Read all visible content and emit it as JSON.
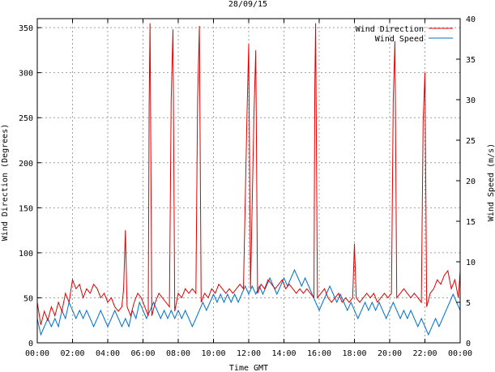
{
  "chart_data": {
    "type": "line",
    "title": "28/09/15",
    "xlabel": "Time GMT",
    "ylabel_left": "Wind Direction (Degrees)",
    "ylabel_right": "Wind Speed (m/s)",
    "x_ticks": [
      "00:00",
      "02:00",
      "04:00",
      "06:00",
      "08:00",
      "10:00",
      "12:00",
      "14:00",
      "16:00",
      "18:00",
      "20:00",
      "22:00",
      "00:00"
    ],
    "x_range_hours": [
      0,
      24
    ],
    "y_left_ticks": [
      0,
      50,
      100,
      150,
      200,
      250,
      300,
      350
    ],
    "y_left_range": [
      0,
      360
    ],
    "y_right_ticks": [
      0,
      5,
      10,
      15,
      20,
      25,
      30,
      35,
      40
    ],
    "y_right_range": [
      0,
      40
    ],
    "grid": true,
    "legend_position": "top-right",
    "series": [
      {
        "name": "Wind Direction",
        "axis": "left",
        "color": "#e00000",
        "points": [
          [
            0.0,
            45
          ],
          [
            0.2,
            20
          ],
          [
            0.4,
            35
          ],
          [
            0.6,
            25
          ],
          [
            0.8,
            40
          ],
          [
            1.0,
            30
          ],
          [
            1.2,
            45
          ],
          [
            1.4,
            35
          ],
          [
            1.6,
            55
          ],
          [
            1.8,
            45
          ],
          [
            2.0,
            70
          ],
          [
            2.2,
            60
          ],
          [
            2.4,
            65
          ],
          [
            2.6,
            50
          ],
          [
            2.8,
            60
          ],
          [
            3.0,
            55
          ],
          [
            3.2,
            65
          ],
          [
            3.4,
            60
          ],
          [
            3.6,
            50
          ],
          [
            3.8,
            55
          ],
          [
            4.0,
            45
          ],
          [
            4.2,
            50
          ],
          [
            4.4,
            40
          ],
          [
            4.6,
            35
          ],
          [
            4.8,
            40
          ],
          [
            4.9,
            60
          ],
          [
            5.0,
            125
          ],
          [
            5.1,
            40
          ],
          [
            5.3,
            30
          ],
          [
            5.5,
            45
          ],
          [
            5.7,
            55
          ],
          [
            5.9,
            50
          ],
          [
            6.1,
            40
          ],
          [
            6.3,
            30
          ],
          [
            6.35,
            265
          ],
          [
            6.4,
            355
          ],
          [
            6.5,
            30
          ],
          [
            6.7,
            45
          ],
          [
            6.9,
            55
          ],
          [
            7.1,
            50
          ],
          [
            7.3,
            45
          ],
          [
            7.5,
            40
          ],
          [
            7.6,
            270
          ],
          [
            7.7,
            348
          ],
          [
            7.8,
            35
          ],
          [
            8.0,
            55
          ],
          [
            8.2,
            50
          ],
          [
            8.4,
            60
          ],
          [
            8.6,
            55
          ],
          [
            8.8,
            60
          ],
          [
            9.0,
            55
          ],
          [
            9.1,
            270
          ],
          [
            9.2,
            352
          ],
          [
            9.3,
            45
          ],
          [
            9.5,
            55
          ],
          [
            9.7,
            50
          ],
          [
            9.9,
            60
          ],
          [
            10.1,
            55
          ],
          [
            10.3,
            65
          ],
          [
            10.5,
            60
          ],
          [
            10.7,
            55
          ],
          [
            10.9,
            60
          ],
          [
            11.1,
            55
          ],
          [
            11.3,
            60
          ],
          [
            11.5,
            65
          ],
          [
            11.7,
            60
          ],
          [
            11.9,
            250
          ],
          [
            12.0,
            332
          ],
          [
            12.1,
            60
          ],
          [
            12.3,
            255
          ],
          [
            12.4,
            325
          ],
          [
            12.5,
            55
          ],
          [
            12.7,
            65
          ],
          [
            12.9,
            60
          ],
          [
            13.1,
            70
          ],
          [
            13.3,
            65
          ],
          [
            13.5,
            60
          ],
          [
            13.7,
            65
          ],
          [
            13.9,
            70
          ],
          [
            14.1,
            60
          ],
          [
            14.3,
            65
          ],
          [
            14.5,
            60
          ],
          [
            14.7,
            55
          ],
          [
            14.9,
            60
          ],
          [
            15.1,
            55
          ],
          [
            15.3,
            60
          ],
          [
            15.5,
            55
          ],
          [
            15.7,
            50
          ],
          [
            15.75,
            285
          ],
          [
            15.8,
            355
          ],
          [
            15.9,
            50
          ],
          [
            16.1,
            55
          ],
          [
            16.3,
            60
          ],
          [
            16.5,
            50
          ],
          [
            16.7,
            45
          ],
          [
            16.9,
            50
          ],
          [
            17.1,
            55
          ],
          [
            17.3,
            45
          ],
          [
            17.5,
            50
          ],
          [
            17.7,
            45
          ],
          [
            17.9,
            50
          ],
          [
            18.0,
            110
          ],
          [
            18.1,
            50
          ],
          [
            18.3,
            45
          ],
          [
            18.5,
            50
          ],
          [
            18.7,
            55
          ],
          [
            18.9,
            50
          ],
          [
            19.1,
            55
          ],
          [
            19.3,
            45
          ],
          [
            19.5,
            50
          ],
          [
            19.7,
            55
          ],
          [
            19.9,
            50
          ],
          [
            20.1,
            55
          ],
          [
            20.2,
            270
          ],
          [
            20.3,
            335
          ],
          [
            20.4,
            50
          ],
          [
            20.6,
            55
          ],
          [
            20.8,
            60
          ],
          [
            21.0,
            55
          ],
          [
            21.2,
            50
          ],
          [
            21.4,
            55
          ],
          [
            21.6,
            50
          ],
          [
            21.8,
            45
          ],
          [
            21.9,
            245
          ],
          [
            22.0,
            300
          ],
          [
            22.1,
            40
          ],
          [
            22.3,
            55
          ],
          [
            22.5,
            60
          ],
          [
            22.7,
            70
          ],
          [
            22.9,
            65
          ],
          [
            23.1,
            75
          ],
          [
            23.3,
            80
          ],
          [
            23.5,
            60
          ],
          [
            23.7,
            70
          ],
          [
            23.9,
            50
          ],
          [
            24.0,
            80
          ]
        ]
      },
      {
        "name": "Wind Speed",
        "axis": "right",
        "color": "#0070d0",
        "points": [
          [
            0.0,
            3
          ],
          [
            0.2,
            1
          ],
          [
            0.4,
            2
          ],
          [
            0.6,
            3
          ],
          [
            0.8,
            2
          ],
          [
            1.0,
            3
          ],
          [
            1.2,
            2
          ],
          [
            1.4,
            4
          ],
          [
            1.6,
            3
          ],
          [
            1.8,
            5
          ],
          [
            2.0,
            4
          ],
          [
            2.2,
            3
          ],
          [
            2.4,
            4
          ],
          [
            2.6,
            3
          ],
          [
            2.8,
            4
          ],
          [
            3.0,
            3
          ],
          [
            3.2,
            2
          ],
          [
            3.4,
            3
          ],
          [
            3.6,
            4
          ],
          [
            3.8,
            3
          ],
          [
            4.0,
            2
          ],
          [
            4.2,
            3
          ],
          [
            4.4,
            4
          ],
          [
            4.6,
            3
          ],
          [
            4.8,
            2
          ],
          [
            5.0,
            3
          ],
          [
            5.2,
            2
          ],
          [
            5.4,
            4
          ],
          [
            5.6,
            3
          ],
          [
            5.8,
            5
          ],
          [
            6.0,
            4
          ],
          [
            6.2,
            3
          ],
          [
            6.4,
            4
          ],
          [
            6.6,
            5
          ],
          [
            6.8,
            4
          ],
          [
            7.0,
            3
          ],
          [
            7.2,
            4
          ],
          [
            7.4,
            3
          ],
          [
            7.6,
            4
          ],
          [
            7.8,
            3
          ],
          [
            8.0,
            4
          ],
          [
            8.2,
            3
          ],
          [
            8.4,
            4
          ],
          [
            8.6,
            3
          ],
          [
            8.8,
            2
          ],
          [
            9.0,
            3
          ],
          [
            9.2,
            4
          ],
          [
            9.4,
            5
          ],
          [
            9.6,
            4
          ],
          [
            9.8,
            5
          ],
          [
            10.0,
            6
          ],
          [
            10.2,
            5
          ],
          [
            10.4,
            6
          ],
          [
            10.6,
            5
          ],
          [
            10.8,
            6
          ],
          [
            11.0,
            5
          ],
          [
            11.2,
            6
          ],
          [
            11.4,
            5
          ],
          [
            11.6,
            6
          ],
          [
            11.8,
            7
          ],
          [
            12.0,
            6
          ],
          [
            12.2,
            7
          ],
          [
            12.4,
            6
          ],
          [
            12.6,
            7
          ],
          [
            12.8,
            6
          ],
          [
            13.0,
            7
          ],
          [
            13.2,
            8
          ],
          [
            13.4,
            7
          ],
          [
            13.6,
            6
          ],
          [
            13.8,
            7
          ],
          [
            14.0,
            8
          ],
          [
            14.2,
            7
          ],
          [
            14.4,
            8
          ],
          [
            14.6,
            9
          ],
          [
            14.8,
            8
          ],
          [
            15.0,
            7
          ],
          [
            15.2,
            8
          ],
          [
            15.4,
            7
          ],
          [
            15.6,
            6
          ],
          [
            15.8,
            5
          ],
          [
            16.0,
            4
          ],
          [
            16.2,
            5
          ],
          [
            16.4,
            6
          ],
          [
            16.6,
            7
          ],
          [
            16.8,
            6
          ],
          [
            17.0,
            5
          ],
          [
            17.2,
            6
          ],
          [
            17.4,
            5
          ],
          [
            17.6,
            4
          ],
          [
            17.8,
            5
          ],
          [
            18.0,
            4
          ],
          [
            18.2,
            3
          ],
          [
            18.4,
            4
          ],
          [
            18.6,
            5
          ],
          [
            18.8,
            4
          ],
          [
            19.0,
            5
          ],
          [
            19.2,
            4
          ],
          [
            19.4,
            5
          ],
          [
            19.6,
            4
          ],
          [
            19.8,
            3
          ],
          [
            20.0,
            4
          ],
          [
            20.2,
            5
          ],
          [
            20.4,
            4
          ],
          [
            20.6,
            3
          ],
          [
            20.8,
            4
          ],
          [
            21.0,
            3
          ],
          [
            21.2,
            4
          ],
          [
            21.4,
            3
          ],
          [
            21.6,
            2
          ],
          [
            21.8,
            3
          ],
          [
            22.0,
            2
          ],
          [
            22.2,
            1
          ],
          [
            22.4,
            2
          ],
          [
            22.6,
            3
          ],
          [
            22.8,
            2
          ],
          [
            23.0,
            3
          ],
          [
            23.2,
            4
          ],
          [
            23.4,
            5
          ],
          [
            23.6,
            6
          ],
          [
            23.8,
            5
          ],
          [
            24.0,
            4
          ]
        ]
      }
    ]
  }
}
